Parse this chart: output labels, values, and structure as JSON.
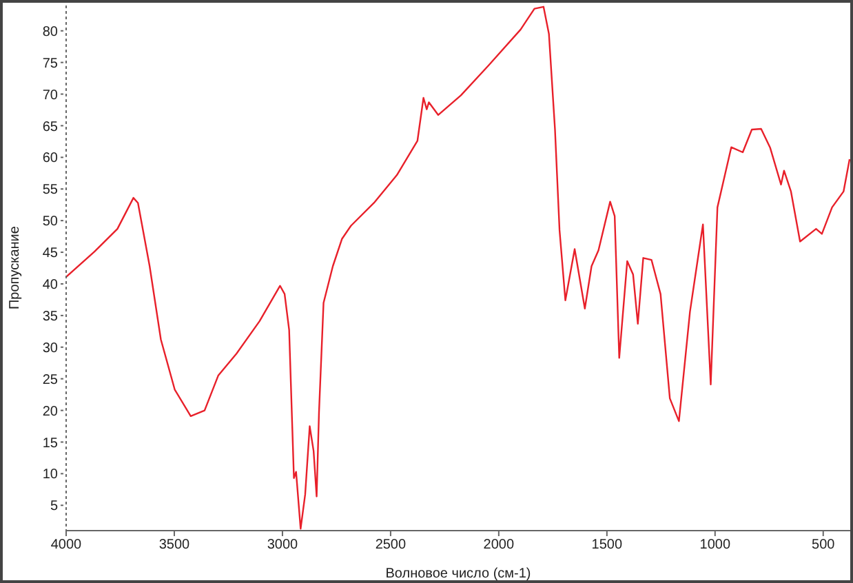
{
  "chart_data": {
    "type": "line",
    "xlabel": "Волновое число (см-1)",
    "ylabel": "Пропускание",
    "xlim": [
      4000,
      375
    ],
    "xticks": [
      4000,
      3500,
      3000,
      2500,
      2000,
      1500,
      1000,
      500
    ],
    "ylim": [
      1,
      84
    ],
    "yticks": [
      5,
      10,
      15,
      20,
      25,
      30,
      35,
      40,
      45,
      50,
      55,
      60,
      65,
      70,
      75,
      80
    ],
    "marker": "none",
    "line_style": "solid",
    "series": [
      {
        "color": "#e8202a",
        "x": [
          4000,
          3869,
          3763,
          3689,
          3668,
          3614,
          3562,
          3498,
          3424,
          3360,
          3297,
          3212,
          3106,
          3011,
          2990,
          2969,
          2954,
          2947,
          2937,
          2916,
          2895,
          2874,
          2856,
          2842,
          2831,
          2810,
          2767,
          2725,
          2683,
          2577,
          2471,
          2376,
          2348,
          2333,
          2323,
          2280,
          2175,
          2048,
          1899,
          1835,
          1793,
          1768,
          1740,
          1719,
          1692,
          1649,
          1602,
          1571,
          1539,
          1485,
          1464,
          1443,
          1406,
          1379,
          1357,
          1332,
          1294,
          1252,
          1209,
          1167,
          1116,
          1056,
          1020,
          989,
          925,
          872,
          830,
          787,
          745,
          695,
          681,
          649,
          607,
          533,
          506,
          459,
          406,
          378
        ],
        "values": [
          41.1,
          45.1,
          48.7,
          53.6,
          52.8,
          42.8,
          31.2,
          23.3,
          19.1,
          20.0,
          25.5,
          29.0,
          34.1,
          39.7,
          38.4,
          32.7,
          16.8,
          9.3,
          10.3,
          1.3,
          6.7,
          17.5,
          13.6,
          6.4,
          19.7,
          37.0,
          42.8,
          47.1,
          49.2,
          52.8,
          57.2,
          62.6,
          69.4,
          67.6,
          68.7,
          66.7,
          69.8,
          74.5,
          80.2,
          83.5,
          83.8,
          79.5,
          64.4,
          48.5,
          37.4,
          45.5,
          36.1,
          42.8,
          45.3,
          53.0,
          50.7,
          28.3,
          43.6,
          41.5,
          33.7,
          44.1,
          43.8,
          38.4,
          21.9,
          18.3,
          35.6,
          49.4,
          24.1,
          52.1,
          61.6,
          60.8,
          64.4,
          64.5,
          61.5,
          55.7,
          57.9,
          54.6,
          46.7,
          48.7,
          47.9,
          52.1,
          54.6,
          59.7
        ]
      }
    ]
  }
}
